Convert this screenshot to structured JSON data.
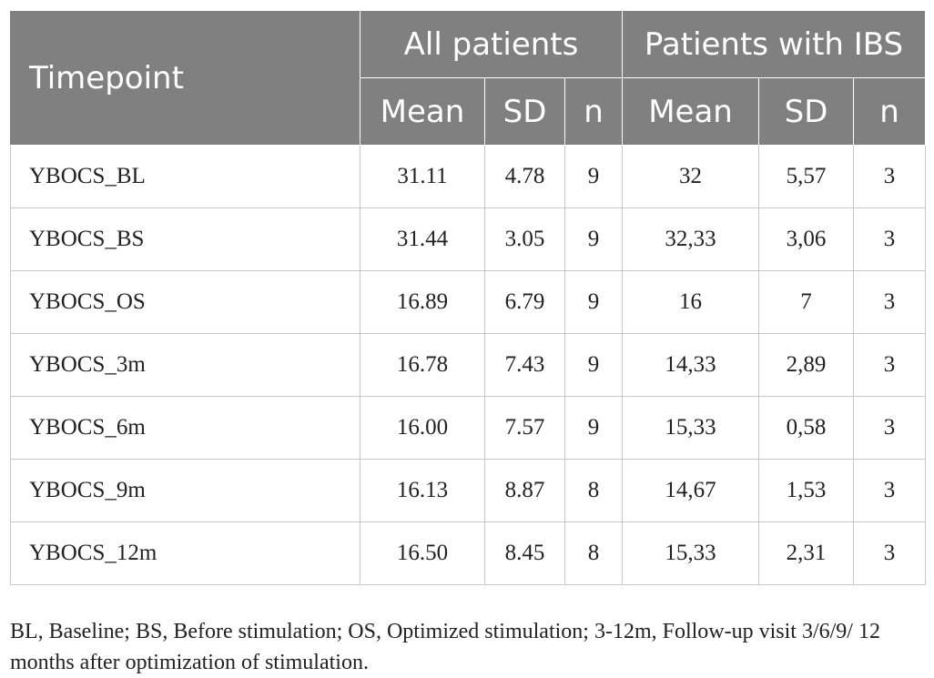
{
  "table": {
    "header": {
      "timepoint": "Timepoint",
      "group_all": "All patients",
      "group_ibs": "Patients with IBS",
      "sub_columns": [
        "Mean",
        "SD",
        "n",
        "Mean",
        "SD",
        "n"
      ]
    },
    "rows": [
      {
        "label": "YBOCS_BL",
        "values": [
          "31.11",
          "4.78",
          "9",
          "32",
          "5,57",
          "3"
        ]
      },
      {
        "label": "YBOCS_BS",
        "values": [
          "31.44",
          "3.05",
          "9",
          "32,33",
          "3,06",
          "3"
        ]
      },
      {
        "label": "YBOCS_OS",
        "values": [
          "16.89",
          "6.79",
          "9",
          "16",
          "7",
          "3"
        ]
      },
      {
        "label": "YBOCS_3m",
        "values": [
          "16.78",
          "7.43",
          "9",
          "14,33",
          "2,89",
          "3"
        ]
      },
      {
        "label": "YBOCS_6m",
        "values": [
          "16.00",
          "7.57",
          "9",
          "15,33",
          "0,58",
          "3"
        ]
      },
      {
        "label": "YBOCS_9m",
        "values": [
          "16.13",
          "8.87",
          "8",
          "14,67",
          "1,53",
          "3"
        ]
      },
      {
        "label": "YBOCS_12m",
        "values": [
          "16.50",
          "8.45",
          "8",
          "15,33",
          "2,31",
          "3"
        ]
      }
    ]
  },
  "caption": "BL, Baseline; BS, Before stimulation; OS, Optimized stimulation; 3-12m, Follow-up visit 3/6/9/ 12 months after optimization of stimulation.",
  "colors": {
    "header_bg": "#808080",
    "header_text": "#ffffff",
    "grid_line": "#c7c7c7",
    "body_text": "#222222"
  }
}
